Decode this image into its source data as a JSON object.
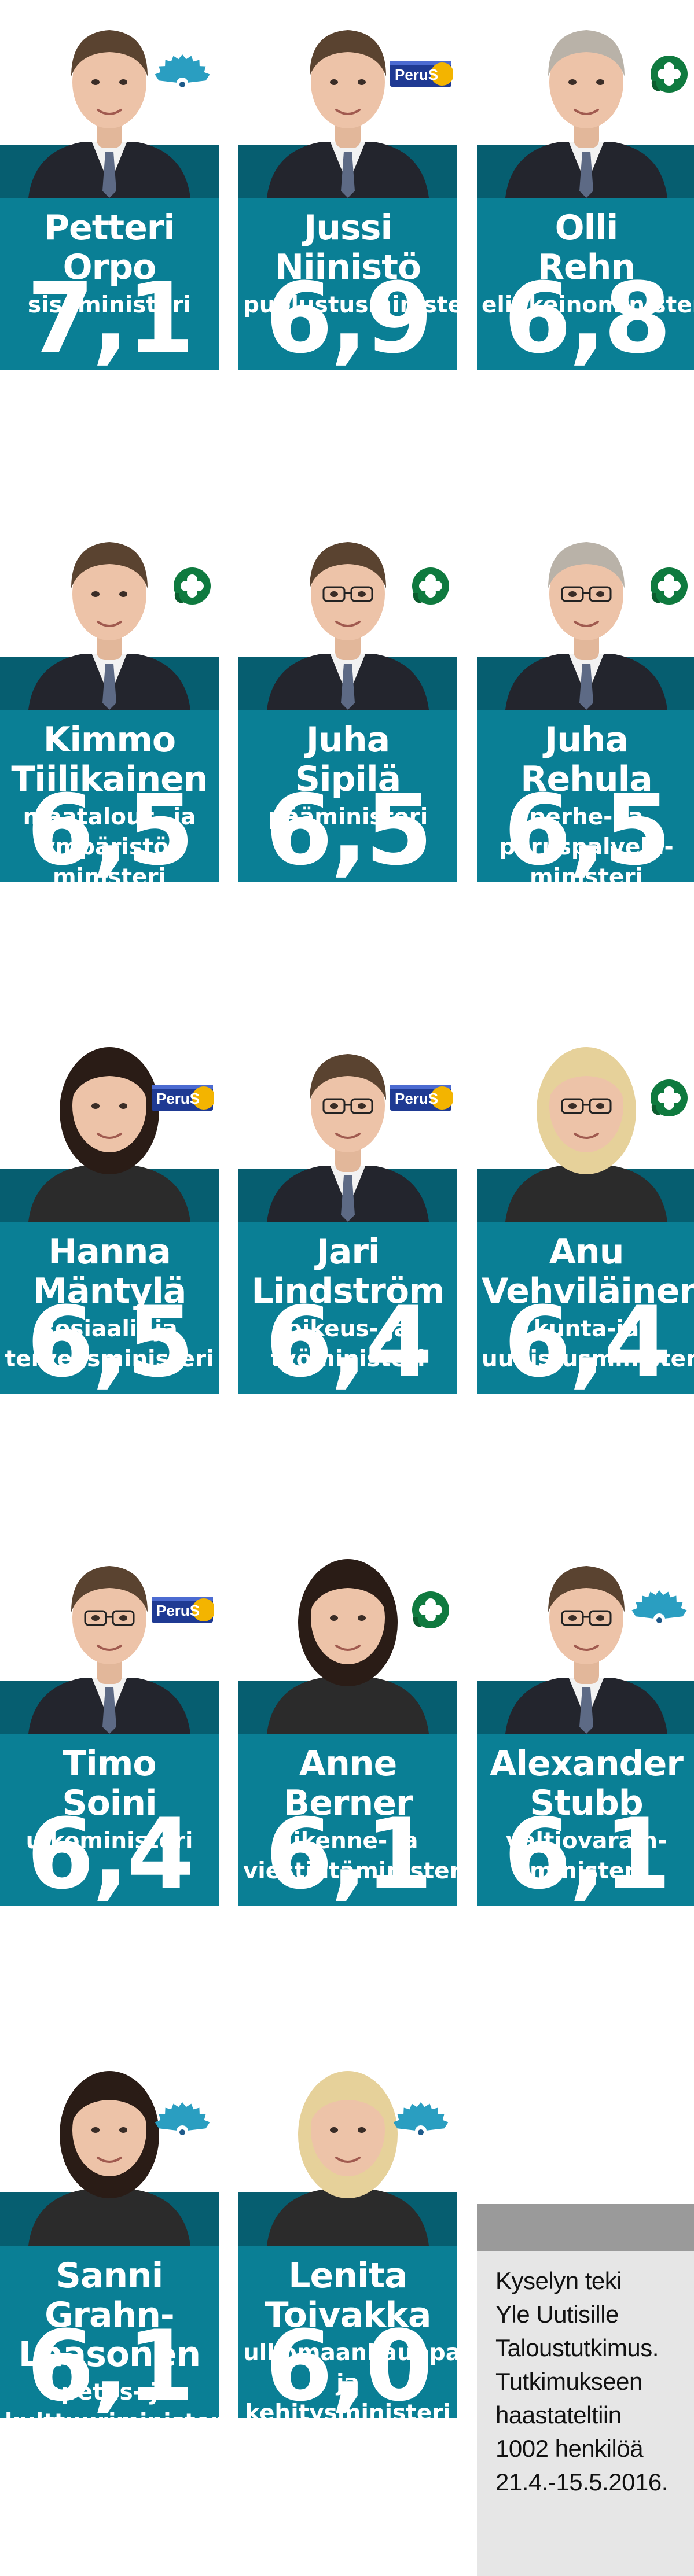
{
  "colors": {
    "band": "#0a7f95",
    "band_dark": "#065e70",
    "note_bg": "#e6e6e6",
    "note_bar": "#9a9a9a",
    "kok": "#2a9ec1",
    "kesk": "#0f7a3f",
    "ps_blue": "#1f3a93",
    "ps_gold": "#f3b400"
  },
  "ministers": [
    {
      "name_lines": [
        "Petteri",
        "Orpo"
      ],
      "role_lines": [
        "sisäministeri"
      ],
      "score": "7,1",
      "party_logo": "kokoomus-flower-icon",
      "party_label": ""
    },
    {
      "name_lines": [
        "Jussi",
        "Niinistö"
      ],
      "role_lines": [
        "puolustusministeri"
      ],
      "score": "6,9",
      "party_logo": "perussuomalaiset-logo",
      "party_label": "PeruS"
    },
    {
      "name_lines": [
        "Olli",
        "Rehn"
      ],
      "role_lines": [
        "elinkeinoministeri"
      ],
      "score": "6,8",
      "party_logo": "keskusta-clover-icon",
      "party_label": ""
    },
    {
      "name_lines": [
        "Kimmo",
        "Tiilikainen"
      ],
      "role_lines": [
        "maatalous- ja",
        "ympäristö-",
        "ministeri"
      ],
      "score": "6,5",
      "party_logo": "keskusta-clover-icon",
      "party_label": ""
    },
    {
      "name_lines": [
        "Juha",
        "Sipilä"
      ],
      "role_lines": [
        "pääministeri"
      ],
      "score": "6,5",
      "party_logo": "keskusta-clover-icon",
      "party_label": ""
    },
    {
      "name_lines": [
        "Juha",
        "Rehula"
      ],
      "role_lines": [
        "perhe- ja",
        "peruspalvelu-",
        "ministeri"
      ],
      "score": "6,5",
      "party_logo": "keskusta-clover-icon",
      "party_label": ""
    },
    {
      "name_lines": [
        "Hanna",
        "Mäntylä"
      ],
      "role_lines": [
        "sosiaali- ja",
        "terveysministeri"
      ],
      "score": "6,5",
      "party_logo": "perussuomalaiset-logo",
      "party_label": "PeruS"
    },
    {
      "name_lines": [
        "Jari",
        "Lindström"
      ],
      "role_lines": [
        "oikeus- ja",
        "työministeri"
      ],
      "score": "6,4",
      "party_logo": "perussuomalaiset-logo",
      "party_label": "PeruS"
    },
    {
      "name_lines": [
        "Anu",
        "Vehviläinen"
      ],
      "role_lines": [
        "kunta-ja",
        "uudistusministeri"
      ],
      "score": "6,4",
      "party_logo": "keskusta-clover-icon",
      "party_label": ""
    },
    {
      "name_lines": [
        "Timo",
        "Soini"
      ],
      "role_lines": [
        "ulkoministeri"
      ],
      "score": "6,4",
      "party_logo": "perussuomalaiset-logo",
      "party_label": "PeruS"
    },
    {
      "name_lines": [
        "Anne",
        "Berner"
      ],
      "role_lines": [
        "liikenne- ja",
        "viestintäministeri"
      ],
      "score": "6,1",
      "party_logo": "keskusta-clover-icon",
      "party_label": ""
    },
    {
      "name_lines": [
        "Alexander",
        "Stubb"
      ],
      "role_lines": [
        "valtiovarain-",
        "ministeri"
      ],
      "score": "6,1",
      "party_logo": "kokoomus-flower-icon",
      "party_label": ""
    },
    {
      "name_lines": [
        "Sanni",
        "Grahn-",
        "Laasonen"
      ],
      "role_lines": [
        "opetus- ja",
        "kulttuuriministeri"
      ],
      "score": "6,1",
      "party_logo": "kokoomus-flower-icon",
      "party_label": ""
    },
    {
      "name_lines": [
        "Lenita",
        "Toivakka"
      ],
      "role_lines": [
        "ulkomaankauppa-",
        "ja kehitysministeri"
      ],
      "score": "6,0",
      "party_logo": "kokoomus-flower-icon",
      "party_label": ""
    }
  ],
  "note": {
    "lines": [
      "Kyselyn teki",
      "Yle Uutisille",
      "Taloustutkimus.",
      "Tutkimukseen",
      "haastateltiin",
      "1002 henkilöä",
      "21.4.-15.5.2016."
    ]
  }
}
